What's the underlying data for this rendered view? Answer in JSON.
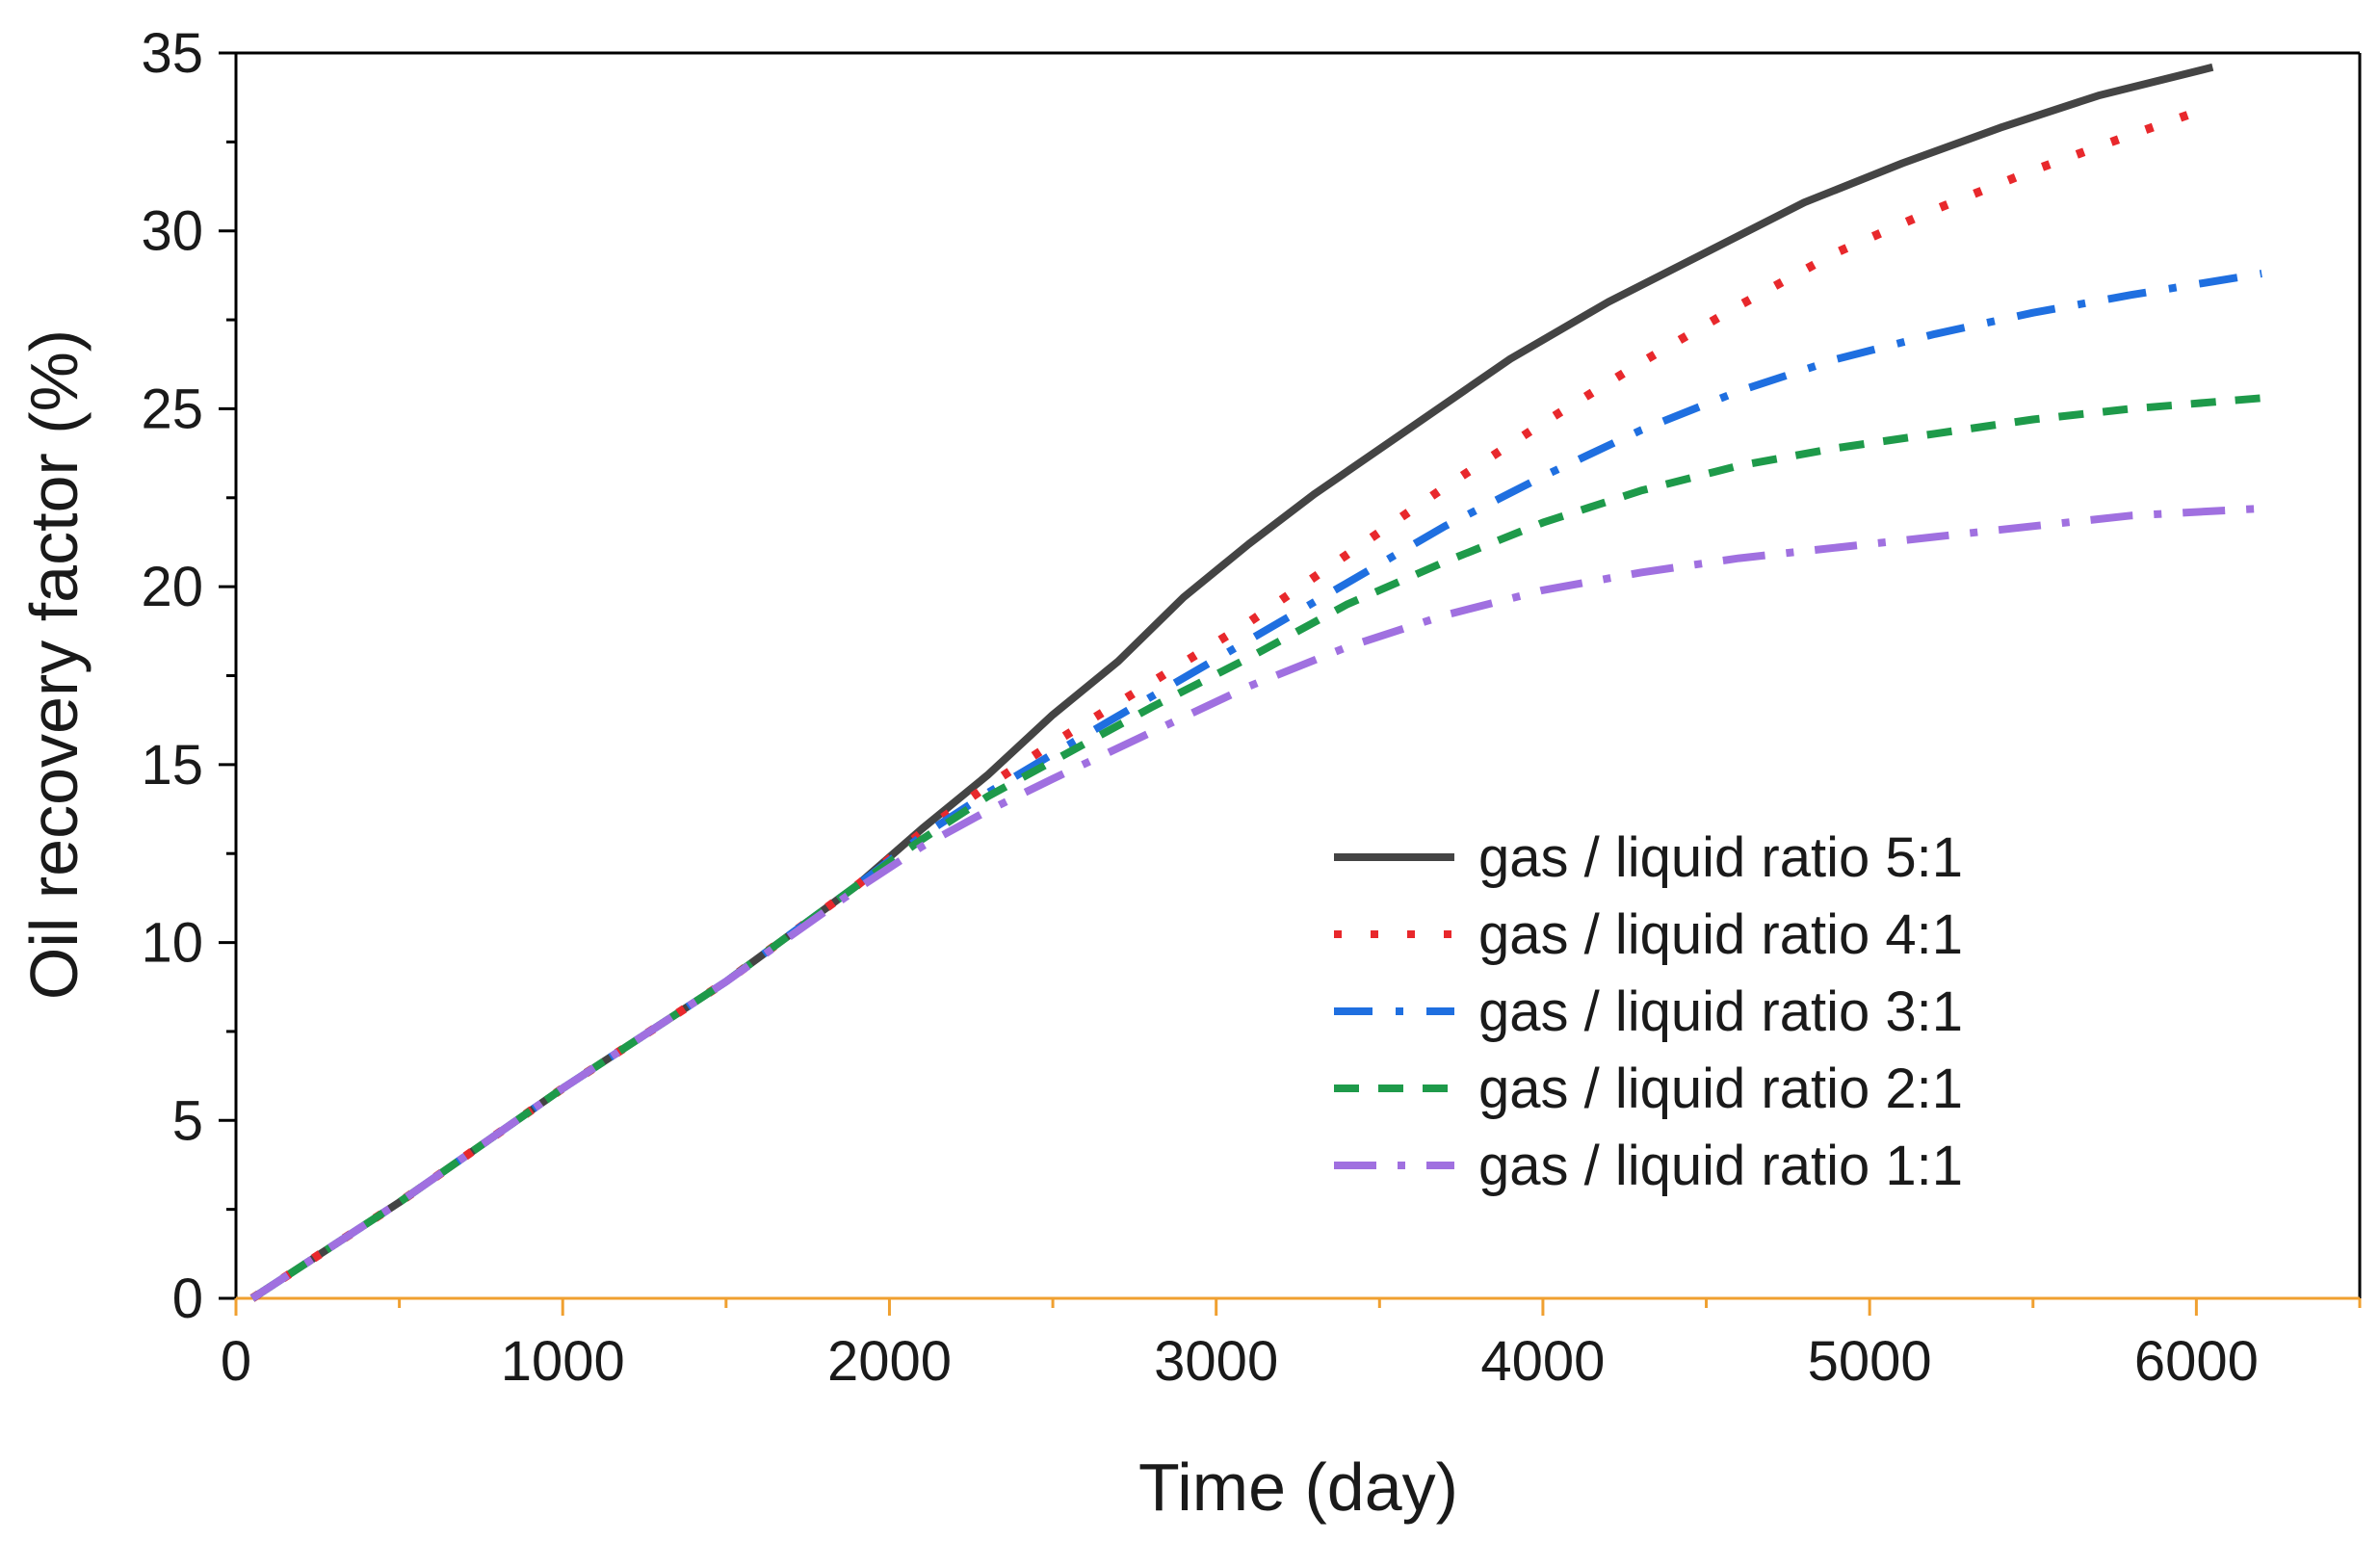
{
  "chart_data": {
    "type": "line",
    "title": "",
    "xlabel": "Time (day)",
    "ylabel": "Oil recovery factor (%)",
    "xlim": [
      0,
      6500
    ],
    "ylim": [
      0,
      35
    ],
    "xticks": [
      0,
      1000,
      2000,
      3000,
      4000,
      5000,
      6000
    ],
    "yticks": [
      0,
      5,
      10,
      15,
      20,
      25,
      30,
      35
    ],
    "grid": false,
    "legend_position": "lower-right",
    "colors": {
      "axis": "#000000",
      "x_axis": "#f0a030"
    },
    "series": [
      {
        "name": "gas / liquid ratio   5:1",
        "color": "#444444",
        "dash": "solid",
        "x": [
          50,
          500,
          1000,
          1500,
          1900,
          2100,
          2300,
          2500,
          2700,
          2900,
          3100,
          3300,
          3600,
          3900,
          4200,
          4500,
          4800,
          5100,
          5400,
          5700,
          6050
        ],
        "y": [
          0,
          2.7,
          5.9,
          8.9,
          11.6,
          13.2,
          14.7,
          16.4,
          17.9,
          19.7,
          21.2,
          22.6,
          24.5,
          26.4,
          28.0,
          29.4,
          30.8,
          31.9,
          32.9,
          33.8,
          34.6
        ]
      },
      {
        "name": "gas / liquid ratio   4:1",
        "color": "#e8282c",
        "dash": "dotted",
        "x": [
          50,
          500,
          1000,
          1500,
          1900,
          2100,
          2300,
          2500,
          2800,
          3100,
          3400,
          3700,
          4000,
          4300,
          4600,
          4900,
          5200,
          5500,
          5800,
          6050
        ],
        "y": [
          0,
          2.7,
          5.9,
          8.9,
          11.6,
          13.1,
          14.4,
          15.6,
          17.3,
          19.0,
          20.9,
          22.8,
          24.6,
          26.3,
          27.9,
          29.4,
          30.6,
          31.7,
          32.7,
          33.5
        ]
      },
      {
        "name": "gas / liquid ratio   3:1",
        "color": "#1f6fe0",
        "dash": "dashdot",
        "x": [
          50,
          500,
          1000,
          1500,
          1900,
          2100,
          2300,
          2500,
          2800,
          3100,
          3400,
          3700,
          4000,
          4300,
          4600,
          4900,
          5200,
          5500,
          5800,
          6200
        ],
        "y": [
          0,
          2.7,
          5.9,
          8.9,
          11.6,
          13.0,
          14.2,
          15.3,
          16.9,
          18.5,
          20.1,
          21.7,
          23.1,
          24.4,
          25.5,
          26.4,
          27.1,
          27.7,
          28.2,
          28.8
        ]
      },
      {
        "name": "gas / liquid ratio   2:1",
        "color": "#1e9a4a",
        "dash": "dashed",
        "x": [
          50,
          500,
          1000,
          1500,
          1900,
          2100,
          2300,
          2500,
          2800,
          3100,
          3400,
          3700,
          4000,
          4300,
          4600,
          4900,
          5200,
          5500,
          5800,
          6200
        ],
        "y": [
          0,
          2.7,
          5.9,
          8.9,
          11.6,
          12.9,
          14.1,
          15.1,
          16.6,
          18.0,
          19.5,
          20.7,
          21.8,
          22.7,
          23.4,
          23.9,
          24.3,
          24.7,
          25.0,
          25.3
        ]
      },
      {
        "name": "gas / liquid ratio   1:1",
        "color": "#a070e0",
        "dash": "dashdotlong",
        "x": [
          50,
          500,
          1000,
          1500,
          1900,
          2100,
          2300,
          2500,
          2800,
          3100,
          3400,
          3700,
          4000,
          4300,
          4600,
          4900,
          5200,
          5500,
          5800,
          6200
        ],
        "y": [
          0,
          2.7,
          5.9,
          8.9,
          11.5,
          12.7,
          13.7,
          14.6,
          15.9,
          17.2,
          18.3,
          19.2,
          19.9,
          20.4,
          20.8,
          21.1,
          21.4,
          21.7,
          22.0,
          22.2
        ]
      }
    ]
  }
}
